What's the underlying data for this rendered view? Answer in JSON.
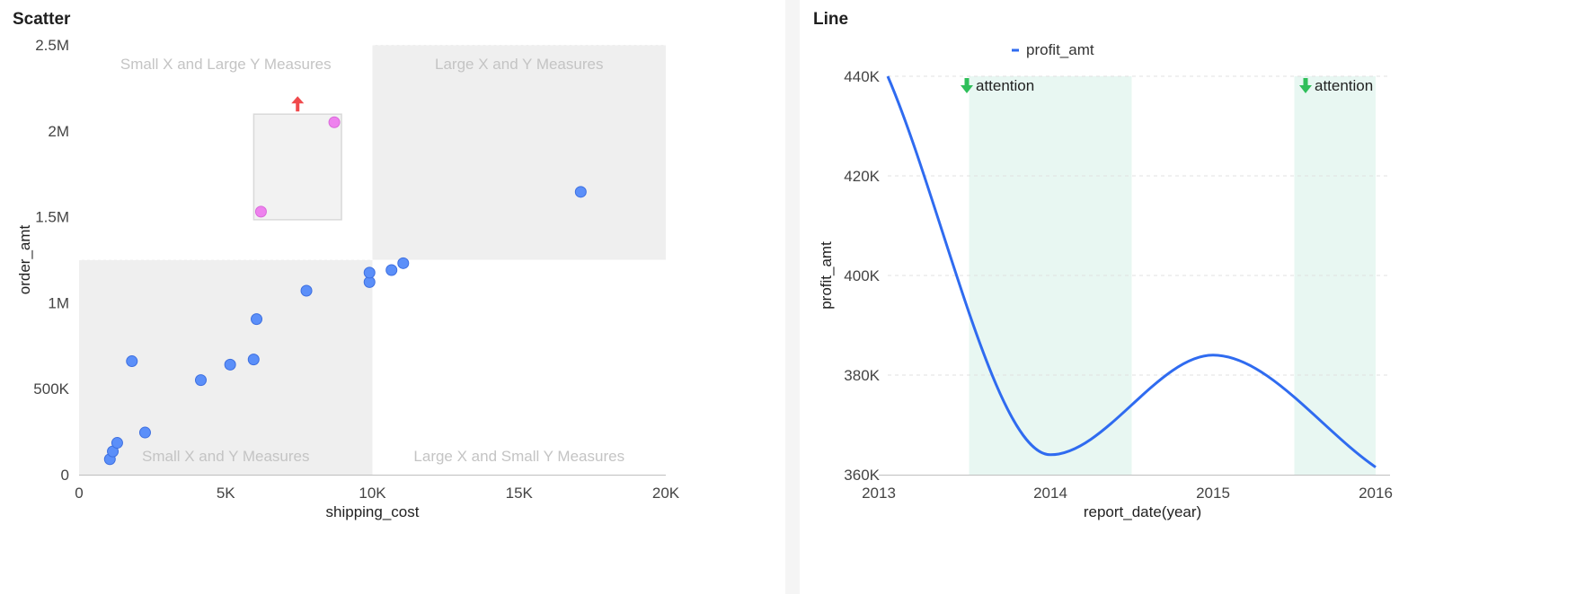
{
  "colors": {
    "point": "#5b8ff9",
    "point_stroke": "#3d6fe0",
    "highlight_point": "#ee82ee",
    "quadrant_fill": "#efefef",
    "band_fill": "#e8f7f2",
    "line": "#2f6bf0",
    "arrow_red": "#f0494c",
    "arrow_green": "#2fbf5a"
  },
  "scatter": {
    "title": "Scatter",
    "quadrant_labels": {
      "top_left": "Small X and Large Y Measures",
      "top_right": "Large X and Y Measures",
      "bottom_left": "Small X and Y Measures",
      "bottom_right": "Large X and Small Y Measures"
    },
    "x_ticks": [
      "0",
      "5K",
      "10K",
      "15K",
      "20K"
    ],
    "y_ticks": [
      "0",
      "500K",
      "1M",
      "1.5M",
      "2M",
      "2.5M"
    ]
  },
  "line": {
    "title": "Line",
    "x_ticks": [
      "2013",
      "2014",
      "2015",
      "2016"
    ],
    "y_ticks": [
      "360K",
      "380K",
      "400K",
      "420K",
      "440K"
    ],
    "annotations": [
      "attention",
      "attention"
    ]
  },
  "chart_data": [
    {
      "type": "scatter",
      "title": "Scatter",
      "xlabel": "shipping_cost",
      "ylabel": "order_amt",
      "xlim": [
        0,
        20000
      ],
      "ylim": [
        0,
        2500000
      ],
      "quadrant_split": {
        "x": 10000,
        "y": 1250000
      },
      "points": [
        {
          "x": 1050,
          "y": 90000
        },
        {
          "x": 1150,
          "y": 135000
        },
        {
          "x": 1300,
          "y": 185000
        },
        {
          "x": 1800,
          "y": 660000
        },
        {
          "x": 2250,
          "y": 245000
        },
        {
          "x": 4150,
          "y": 550000
        },
        {
          "x": 5150,
          "y": 640000
        },
        {
          "x": 5950,
          "y": 670000
        },
        {
          "x": 6050,
          "y": 905000
        },
        {
          "x": 7750,
          "y": 1070000
        },
        {
          "x": 9900,
          "y": 1120000
        },
        {
          "x": 9900,
          "y": 1175000
        },
        {
          "x": 10650,
          "y": 1190000
        },
        {
          "x": 11050,
          "y": 1230000
        },
        {
          "x": 17100,
          "y": 1645000
        }
      ],
      "highlighted_points": [
        {
          "x": 6200,
          "y": 1530000
        },
        {
          "x": 8700,
          "y": 2050000
        }
      ],
      "grid": false
    },
    {
      "type": "line",
      "title": "Line",
      "xlabel": "report_date(year)",
      "ylabel": "profit_amt",
      "categories": [
        "2013",
        "2014",
        "2015",
        "2016"
      ],
      "ylim": [
        360000,
        440000
      ],
      "series": [
        {
          "name": "profit_amt",
          "values": [
            440000,
            364000,
            384000,
            361500
          ]
        }
      ],
      "highlight_bands": [
        {
          "from": 2013.5,
          "to": 2014.5,
          "label": "attention"
        },
        {
          "from": 2015.5,
          "to": 2016.0,
          "label": "attention"
        }
      ],
      "legend": "top-center",
      "grid": true
    }
  ]
}
